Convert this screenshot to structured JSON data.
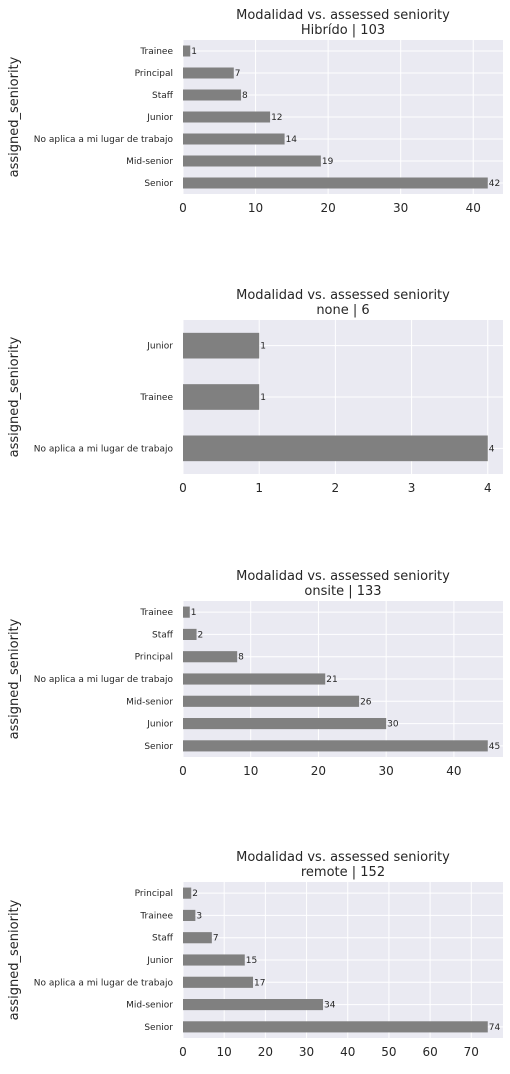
{
  "chart_data": [
    {
      "type": "bar",
      "orientation": "horizontal",
      "title": "Modalidad vs. assessed seniority",
      "subtitle": "Hibrído | 103",
      "ylabel": "assigned_seniority",
      "categories": [
        "Trainee",
        "Principal",
        "Staff",
        "Junior",
        "No aplica a mi lugar de trabajo",
        "Mid-senior",
        "Senior"
      ],
      "values": [
        1,
        7,
        8,
        12,
        14,
        19,
        42
      ],
      "xlim": [
        0,
        44.1
      ],
      "xticks": [
        0,
        10,
        20,
        30,
        40
      ],
      "grid": true,
      "color": "#808080"
    },
    {
      "type": "bar",
      "orientation": "horizontal",
      "title": "Modalidad vs. assessed seniority",
      "subtitle": "none | 6",
      "ylabel": "assigned_seniority",
      "categories": [
        "Junior",
        "Trainee",
        "No aplica a mi lugar de trabajo"
      ],
      "values": [
        1,
        1,
        4
      ],
      "xlim": [
        0,
        4.2
      ],
      "xticks": [
        0,
        1,
        2,
        3,
        4
      ],
      "grid": true,
      "color": "#808080"
    },
    {
      "type": "bar",
      "orientation": "horizontal",
      "title": "Modalidad vs. assessed seniority",
      "subtitle": "onsite | 133",
      "ylabel": "assigned_seniority",
      "categories": [
        "Trainee",
        "Staff",
        "Principal",
        "No aplica a mi lugar de trabajo",
        "Mid-senior",
        "Junior",
        "Senior"
      ],
      "values": [
        1,
        2,
        8,
        21,
        26,
        30,
        45
      ],
      "xlim": [
        0,
        47.25
      ],
      "xticks": [
        0,
        10,
        20,
        30,
        40
      ],
      "grid": true,
      "color": "#808080"
    },
    {
      "type": "bar",
      "orientation": "horizontal",
      "title": "Modalidad vs. assessed seniority",
      "subtitle": "remote | 152",
      "ylabel": "assigned_seniority",
      "categories": [
        "Principal",
        "Trainee",
        "Staff",
        "Junior",
        "No aplica a mi lugar de trabajo",
        "Mid-senior",
        "Senior"
      ],
      "values": [
        2,
        3,
        7,
        15,
        17,
        34,
        74
      ],
      "xlim": [
        0,
        77.7
      ],
      "xticks": [
        0,
        10,
        20,
        30,
        40,
        50,
        60,
        70
      ],
      "grid": true,
      "color": "#808080"
    }
  ]
}
